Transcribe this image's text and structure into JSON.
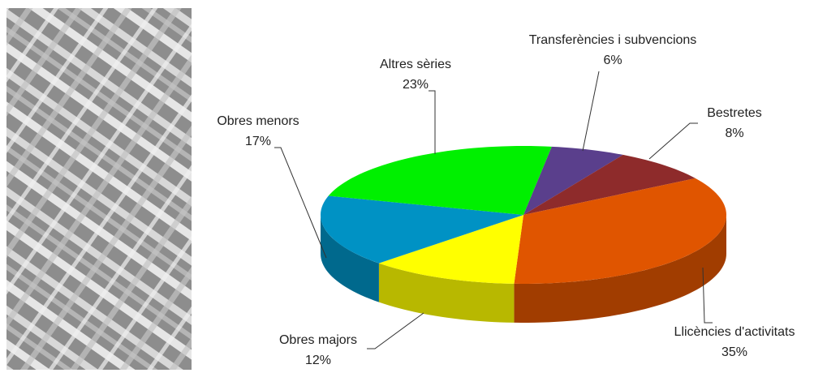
{
  "chart_data": {
    "type": "pie3d",
    "categories": [
      "Transferències i subvencions",
      "Bestretes",
      "Llicències d'activitats",
      "Obres majors",
      "Obres menors",
      "Altres sèries"
    ],
    "values": [
      6,
      8,
      35,
      12,
      17,
      23
    ],
    "value_labels": [
      "6%",
      "8%",
      "35%",
      "12%",
      "17%",
      "23%"
    ],
    "colors": [
      "#5a3f8c",
      "#8e2b2b",
      "#e05500",
      "#ffff00",
      "#0092c4",
      "#00f000"
    ]
  }
}
